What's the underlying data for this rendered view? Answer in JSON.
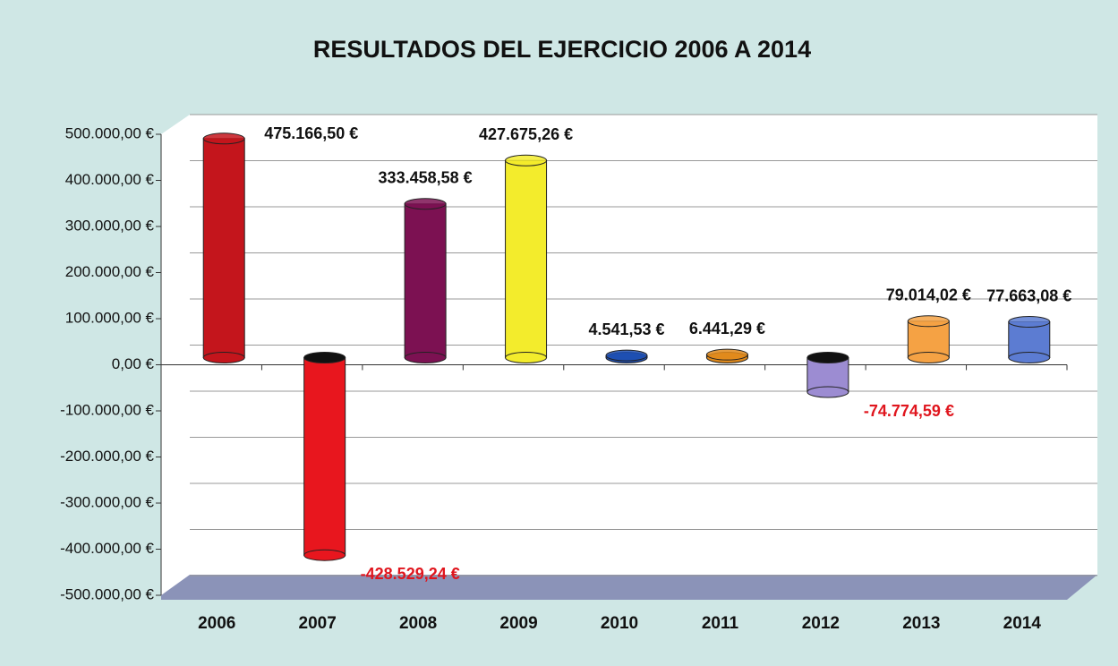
{
  "chart_data": {
    "type": "bar3d",
    "title": "RESULTADOS DEL EJERCICIO 2006  A 2014",
    "categories": [
      "2006",
      "2007",
      "2008",
      "2009",
      "2010",
      "2011",
      "2012",
      "2013",
      "2014"
    ],
    "values": [
      475166.5,
      -428529.24,
      333458.58,
      427675.26,
      4541.53,
      6441.29,
      -74774.59,
      79014.02,
      77663.08
    ],
    "value_labels": [
      "475.166,50 €",
      "-428.529,24 €",
      "333.458,58 €",
      "427.675,26 €",
      "4.541,53 €",
      "6.441,29 €",
      "-74.774,59 €",
      "79.014,02 €",
      "77.663,08 €"
    ],
    "colors": [
      "#c4151c",
      "#e8161e",
      "#7c1152",
      "#f3ec2c",
      "#1f4fb2",
      "#e08a1c",
      "#9c8cd2",
      "#f5a244",
      "#5c7cd2"
    ],
    "ylim": [
      -500000,
      500000
    ],
    "yticks": [
      {
        "value": -500000,
        "label": "-500.000,00 €"
      },
      {
        "value": -400000,
        "label": "-400.000,00 €"
      },
      {
        "value": -300000,
        "label": "-300.000,00 €"
      },
      {
        "value": -200000,
        "label": "-200.000,00 €"
      },
      {
        "value": -100000,
        "label": "-100.000,00 €"
      },
      {
        "value": 0,
        "label": "0,00 €"
      },
      {
        "value": 100000,
        "label": "100.000,00 €"
      },
      {
        "value": 200000,
        "label": "200.000,00 €"
      },
      {
        "value": 300000,
        "label": "300.000,00 €"
      },
      {
        "value": 400000,
        "label": "400.000,00 €"
      },
      {
        "value": 500000,
        "label": "500.000,00 €"
      }
    ],
    "grid": true
  }
}
